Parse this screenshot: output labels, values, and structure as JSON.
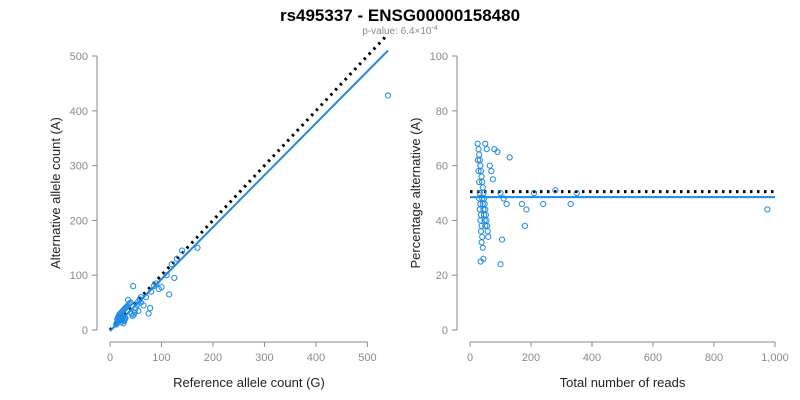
{
  "figure": {
    "title": "rs495337 - ENSG00000158480",
    "subtitle_prefix": "p-value: 6.4×10",
    "subtitle_exponent": "-4"
  },
  "chart_data": [
    {
      "type": "scatter",
      "title": "",
      "xlabel": "Reference allele count (G)",
      "ylabel": "Alternative allele count (A)",
      "xlim": [
        0,
        540
      ],
      "ylim": [
        0,
        500
      ],
      "x_ticks": [
        0,
        100,
        200,
        300,
        400,
        500
      ],
      "y_ticks": [
        0,
        100,
        200,
        300,
        400,
        500
      ],
      "x_tick_labels": [
        "0",
        "100",
        "200",
        "300",
        "400",
        "500"
      ],
      "y_tick_labels": [
        "0",
        "100",
        "200",
        "300",
        "400",
        "500"
      ],
      "grid": false,
      "point_color": "#1e88e5",
      "fit_line_color": "#1e88e5",
      "series": [
        {
          "values_xy": [
            [
              12,
              10
            ],
            [
              13,
              12
            ],
            [
              14,
              14
            ],
            [
              15,
              16
            ],
            [
              16,
              18
            ],
            [
              17,
              20
            ],
            [
              18,
              22
            ],
            [
              19,
              24
            ],
            [
              20,
              26
            ],
            [
              21,
              14
            ],
            [
              22,
              18
            ],
            [
              23,
              20
            ],
            [
              24,
              22
            ],
            [
              25,
              24
            ],
            [
              26,
              12
            ],
            [
              27,
              16
            ],
            [
              28,
              18
            ],
            [
              29,
              20
            ],
            [
              30,
              22
            ],
            [
              14,
              20
            ],
            [
              16,
              24
            ],
            [
              18,
              28
            ],
            [
              20,
              30
            ],
            [
              22,
              32
            ],
            [
              24,
              34
            ],
            [
              26,
              36
            ],
            [
              28,
              38
            ],
            [
              30,
              40
            ],
            [
              32,
              42
            ],
            [
              34,
              44
            ],
            [
              36,
              46
            ],
            [
              38,
              48
            ],
            [
              40,
              50
            ],
            [
              42,
              30
            ],
            [
              44,
              26
            ],
            [
              46,
              28
            ],
            [
              48,
              32
            ],
            [
              50,
              40
            ],
            [
              52,
              46
            ],
            [
              55,
              52
            ],
            [
              58,
              56
            ],
            [
              60,
              60
            ],
            [
              35,
              55
            ],
            [
              45,
              80
            ],
            [
              55,
              35
            ],
            [
              60,
              50
            ],
            [
              65,
              45
            ],
            [
              70,
              60
            ],
            [
              75,
              30
            ],
            [
              78,
              40
            ],
            [
              80,
              70
            ],
            [
              85,
              80
            ],
            [
              90,
              85
            ],
            [
              95,
              75
            ],
            [
              100,
              78
            ],
            [
              110,
              100
            ],
            [
              115,
              65
            ],
            [
              120,
              120
            ],
            [
              125,
              95
            ],
            [
              130,
              130
            ],
            [
              140,
              145
            ],
            [
              170,
              150
            ],
            [
              540,
              428
            ]
          ]
        }
      ],
      "fit_line": [
        [
          0,
          -2
        ],
        [
          540,
          510
        ]
      ],
      "reference_line": [
        [
          0,
          0
        ],
        [
          540,
          540
        ]
      ]
    },
    {
      "type": "scatter",
      "title": "",
      "xlabel": "Total number of reads",
      "ylabel": "Percentage alternative (A)",
      "xlim": [
        0,
        1000
      ],
      "ylim": [
        0,
        100
      ],
      "x_ticks": [
        0,
        200,
        400,
        600,
        800,
        1000
      ],
      "y_ticks": [
        0,
        20,
        40,
        60,
        80,
        100
      ],
      "x_tick_labels": [
        "0",
        "200",
        "400",
        "600",
        "800",
        "1,000"
      ],
      "y_tick_labels": [
        "0",
        "20",
        "40",
        "60",
        "80",
        "100"
      ],
      "grid": false,
      "point_color": "#1e88e5",
      "fit_line_color": "#1e88e5",
      "series": [
        {
          "values_xy": [
            [
              25,
              68
            ],
            [
              28,
              66
            ],
            [
              30,
              64
            ],
            [
              32,
              62
            ],
            [
              34,
              60
            ],
            [
              36,
              58
            ],
            [
              38,
              56
            ],
            [
              40,
              54
            ],
            [
              42,
              52
            ],
            [
              44,
              50
            ],
            [
              46,
              48
            ],
            [
              48,
              46
            ],
            [
              50,
              44
            ],
            [
              52,
              42
            ],
            [
              54,
              40
            ],
            [
              56,
              38
            ],
            [
              58,
              36
            ],
            [
              60,
              34
            ],
            [
              26,
              62
            ],
            [
              28,
              58
            ],
            [
              30,
              54
            ],
            [
              32,
              50
            ],
            [
              34,
              46
            ],
            [
              36,
              42
            ],
            [
              38,
              38
            ],
            [
              40,
              34
            ],
            [
              42,
              30
            ],
            [
              44,
              26
            ],
            [
              30,
              48
            ],
            [
              32,
              44
            ],
            [
              34,
              40
            ],
            [
              36,
              36
            ],
            [
              38,
              32
            ],
            [
              40,
              48
            ],
            [
              42,
              46
            ],
            [
              44,
              44
            ],
            [
              46,
              42
            ],
            [
              48,
              40
            ],
            [
              50,
              38
            ],
            [
              35,
              25
            ],
            [
              100,
              24
            ],
            [
              50,
              68
            ],
            [
              55,
              66
            ],
            [
              65,
              60
            ],
            [
              70,
              58
            ],
            [
              75,
              55
            ],
            [
              80,
              66
            ],
            [
              90,
              65
            ],
            [
              100,
              50
            ],
            [
              110,
              48
            ],
            [
              120,
              46
            ],
            [
              105,
              33
            ],
            [
              130,
              63
            ],
            [
              180,
              38
            ],
            [
              170,
              46
            ],
            [
              185,
              44
            ],
            [
              210,
              50
            ],
            [
              240,
              46
            ],
            [
              280,
              51
            ],
            [
              330,
              46
            ],
            [
              350,
              50
            ],
            [
              975,
              44
            ]
          ]
        }
      ],
      "fit_line": [
        [
          0,
          48.5
        ],
        [
          1000,
          48.5
        ]
      ],
      "reference_line": [
        [
          0,
          50.5
        ],
        [
          1000,
          50.5
        ]
      ]
    }
  ]
}
